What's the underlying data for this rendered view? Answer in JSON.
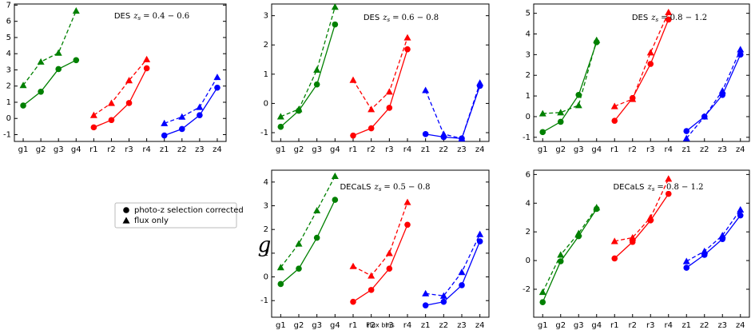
{
  "chart_data": [
    {
      "type": "line",
      "title": "DES",
      "title_var": "z",
      "title_sub": "s",
      "title_range": "= 0.4 − 0.6",
      "categories": [
        "g1",
        "g2",
        "g3",
        "g4",
        "r1",
        "r2",
        "r3",
        "r4",
        "z1",
        "z2",
        "z3",
        "z4"
      ],
      "group_colors": [
        "#008000",
        "#ff0000",
        "#0000ff"
      ],
      "ylim": [
        -1.42,
        7.07
      ],
      "yticks": [
        -1,
        0,
        1,
        2,
        3,
        4,
        5,
        6,
        7
      ],
      "series": [
        {
          "marker": "circle",
          "dashed": false,
          "values": [
            0.8,
            1.65,
            3.05,
            3.6,
            -0.55,
            -0.1,
            0.95,
            3.1,
            -1.05,
            -0.65,
            0.2,
            1.9
          ]
        },
        {
          "marker": "triangle",
          "dashed": true,
          "values": [
            2.05,
            3.5,
            4.05,
            6.65,
            0.2,
            0.95,
            2.35,
            3.65,
            -0.3,
            0.1,
            0.7,
            2.55
          ]
        }
      ]
    },
    {
      "type": "line",
      "title": "DES",
      "title_var": "z",
      "title_sub": "s",
      "title_range": "= 0.6 − 0.8",
      "categories": [
        "g1",
        "g2",
        "g3",
        "g4",
        "r1",
        "r2",
        "r3",
        "r4",
        "z1",
        "z2",
        "z3",
        "z4"
      ],
      "group_colors": [
        "#008000",
        "#ff0000",
        "#0000ff"
      ],
      "ylim": [
        -1.3,
        3.4
      ],
      "yticks": [
        -1,
        0,
        1,
        2,
        3
      ],
      "series": [
        {
          "marker": "circle",
          "dashed": false,
          "values": [
            -0.8,
            -0.25,
            0.65,
            2.7,
            -1.1,
            -0.85,
            -0.15,
            1.85,
            -1.05,
            -1.15,
            -1.2,
            0.6
          ]
        },
        {
          "marker": "triangle",
          "dashed": true,
          "values": [
            -0.45,
            -0.2,
            1.15,
            3.3,
            0.8,
            -0.2,
            0.4,
            2.25,
            0.45,
            -1.05,
            -1.2,
            0.7
          ]
        }
      ]
    },
    {
      "type": "line",
      "title": "DES",
      "title_var": "z",
      "title_sub": "s",
      "title_range": "= 0.8 − 1.2",
      "categories": [
        "g1",
        "g2",
        "g3",
        "g4",
        "r1",
        "r2",
        "r3",
        "r4",
        "z1",
        "z2",
        "z3",
        "z4"
      ],
      "group_colors": [
        "#008000",
        "#ff0000",
        "#0000ff"
      ],
      "ylim": [
        -1.2,
        5.45
      ],
      "yticks": [
        -1,
        0,
        1,
        2,
        3,
        4,
        5
      ],
      "series": [
        {
          "marker": "circle",
          "dashed": false,
          "values": [
            -0.75,
            -0.25,
            1.05,
            3.6,
            -0.2,
            0.9,
            2.55,
            4.7,
            -0.7,
            0.0,
            1.05,
            3.0
          ]
        },
        {
          "marker": "triangle",
          "dashed": true,
          "values": [
            0.15,
            0.2,
            0.55,
            3.7,
            0.5,
            0.85,
            3.1,
            5.05,
            -1.05,
            0.0,
            1.25,
            3.25
          ]
        }
      ]
    },
    {
      "type": "line",
      "title": "DECaLS",
      "title_var": "z",
      "title_sub": "s",
      "title_range": "= 0.5 − 0.8",
      "categories": [
        "g1",
        "g2",
        "g3",
        "g4",
        "r1",
        "r2",
        "r3",
        "r4",
        "z1",
        "z2",
        "z3",
        "z4"
      ],
      "group_colors": [
        "#008000",
        "#ff0000",
        "#0000ff"
      ],
      "ylim": [
        -1.7,
        4.5
      ],
      "yticks": [
        -1,
        0,
        1,
        2,
        3,
        4
      ],
      "series": [
        {
          "marker": "circle",
          "dashed": false,
          "values": [
            -0.3,
            0.35,
            1.65,
            3.25,
            -1.05,
            -0.55,
            0.35,
            2.2,
            -1.2,
            -1.05,
            -0.35,
            1.5
          ]
        },
        {
          "marker": "triangle",
          "dashed": true,
          "values": [
            0.4,
            1.4,
            2.8,
            4.25,
            0.45,
            0.05,
            1.0,
            3.15,
            -0.7,
            -0.8,
            0.2,
            1.8
          ]
        }
      ]
    },
    {
      "type": "line",
      "title": "DECaLS",
      "title_var": "z",
      "title_sub": "s",
      "title_range": "= 0.8 − 1.2",
      "categories": [
        "g1",
        "g2",
        "g3",
        "g4",
        "r1",
        "r2",
        "r3",
        "r4",
        "z1",
        "z2",
        "z3",
        "z4"
      ],
      "group_colors": [
        "#008000",
        "#ff0000",
        "#0000ff"
      ],
      "ylim": [
        -3.95,
        6.3
      ],
      "yticks": [
        -2,
        0,
        2,
        4,
        6
      ],
      "series": [
        {
          "marker": "circle",
          "dashed": false,
          "values": [
            -2.9,
            -0.05,
            1.7,
            3.6,
            0.15,
            1.3,
            2.8,
            4.65,
            -0.5,
            0.4,
            1.5,
            3.15
          ]
        },
        {
          "marker": "triangle",
          "dashed": true,
          "values": [
            -2.2,
            0.4,
            1.9,
            3.7,
            1.35,
            1.6,
            3.0,
            5.7,
            -0.05,
            0.65,
            1.75,
            3.55
          ]
        }
      ]
    }
  ],
  "legend": {
    "entries": [
      {
        "name": "photo-z selection corrected",
        "marker": "circle"
      },
      {
        "name": "flux only",
        "marker": "triangle"
      }
    ]
  },
  "ylabel": "g",
  "xlabel": "Flux bins"
}
